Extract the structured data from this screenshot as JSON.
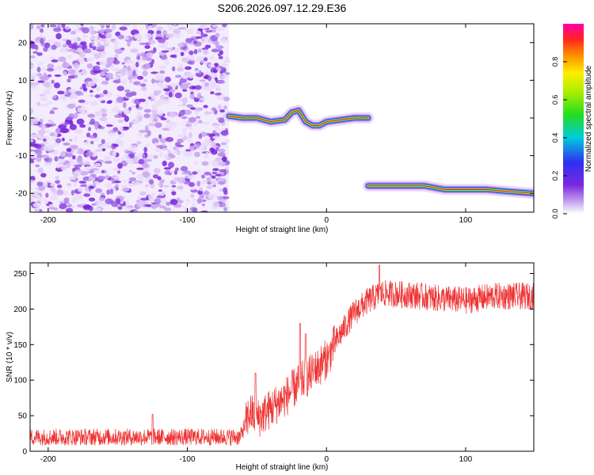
{
  "title": "S206.2026.097.12.29.E36",
  "chart_data": [
    {
      "type": "heatmap",
      "xlabel": "Height of straight line (km)",
      "ylabel": "Frequency (Hz)",
      "xlim": [
        -213,
        149
      ],
      "ylim": [
        -25,
        25
      ],
      "x_ticks": [
        -200,
        -100,
        0,
        100
      ],
      "y_ticks": [
        -20,
        -10,
        0,
        10,
        20
      ],
      "noise_region": {
        "x": [
          -213,
          -70
        ],
        "y": [
          -25,
          25
        ]
      },
      "ridge_segments": [
        {
          "x": [
            -70,
            -60,
            -50,
            -40,
            -30,
            -25,
            -20,
            -15,
            -10,
            -5,
            0,
            10,
            20,
            30
          ],
          "y": [
            0.5,
            0,
            0,
            -1,
            -0.5,
            1.5,
            2,
            -1,
            -2,
            -2,
            -1,
            -0.5,
            0,
            0
          ]
        },
        {
          "x": [
            30,
            50,
            70,
            85,
            100,
            115,
            130,
            149
          ],
          "y": [
            -18,
            -18,
            -18,
            -19,
            -19,
            -19,
            -19.5,
            -20
          ]
        }
      ],
      "colorbar": {
        "label": "Normalized spectral amplitude",
        "ticks": [
          "0.0",
          "0.2",
          "0.4",
          "0.6",
          "0.8"
        ],
        "range": [
          0,
          1
        ]
      }
    },
    {
      "type": "line",
      "xlabel": "Height of straight line (km)",
      "ylabel": "SNR (10 * v/v)",
      "xlim": [
        -213,
        149
      ],
      "ylim": [
        0,
        265
      ],
      "x_ticks": [
        -200,
        -100,
        0,
        100
      ],
      "y_ticks": [
        0,
        50,
        100,
        150,
        200,
        250
      ],
      "color": "#ee3333",
      "trend": {
        "x": [
          -213,
          -150,
          -100,
          -70,
          -62,
          -55,
          -50,
          -40,
          -30,
          -20,
          -10,
          0,
          10,
          20,
          30,
          40,
          60,
          80,
          100,
          120,
          149
        ],
        "y": [
          20,
          20,
          20,
          20,
          20,
          55,
          45,
          60,
          75,
          95,
          110,
          130,
          165,
          195,
          212,
          222,
          220,
          215,
          212,
          218,
          218
        ]
      },
      "noise_amplitude": 12,
      "spikes": [
        {
          "x": -51,
          "y": 110
        },
        {
          "x": -19,
          "y": 180
        },
        {
          "x": -15,
          "y": 165
        },
        {
          "x": -9,
          "y": 130
        },
        {
          "x": 2,
          "y": 140
        },
        {
          "x": 38,
          "y": 262
        },
        {
          "x": -125,
          "y": 52
        }
      ]
    }
  ]
}
